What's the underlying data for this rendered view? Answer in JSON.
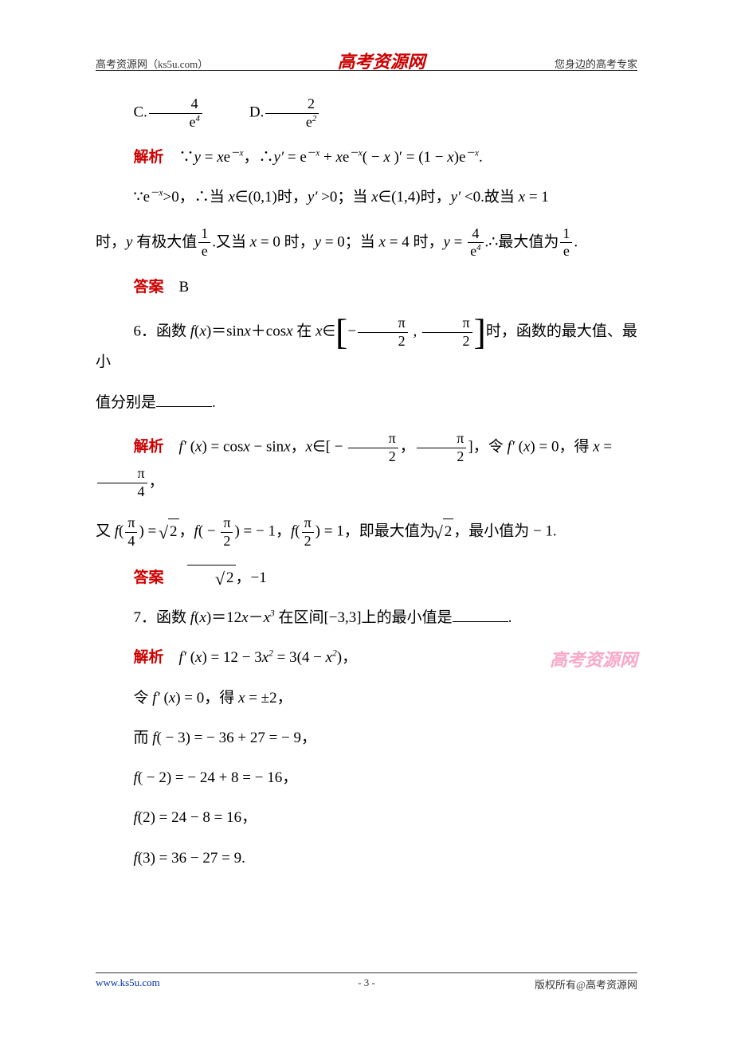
{
  "header": {
    "left": "高考资源网（ks5u.com）",
    "center": "高考资源网",
    "right": "您身边的高考专家"
  },
  "watermark": "高考资源网",
  "blocks": {
    "cd_line": {
      "C": "C.",
      "c_num": "4",
      "c_den": "e",
      "c_exp": "4",
      "D": "D.",
      "d_num": "2",
      "d_den": "e",
      "d_exp": "2",
      "gap": "　　　"
    },
    "s1": {
      "label": "解析",
      "t1": "∵",
      "eq1_l": "y",
      "eq1_r": " = ",
      "eq1_b": "x",
      "eq1_c": "e",
      "exp1": "－x",
      "t2": "，∴",
      "eq2_l": "y′",
      "eq2_r": " = e",
      "exp2": "－x",
      "plus": " + ",
      "eq2_c": "x",
      "eq2_d": "e",
      "exp3": "－x",
      "paren": "( − ",
      "eq2_e": "x",
      "close": " )′ = (1 − ",
      "eq2_f": "x",
      "tail": ")e",
      "exp4": "－x",
      "dot": "."
    },
    "s2": {
      "pre": "∵",
      "eq": "e",
      "exp": "－x",
      "gt": ">0，∴当 ",
      "x1": "x",
      "in1": "∈(0,1)时，",
      "yp1": "y′",
      "g0": " >0；当 ",
      "x2": "x",
      "in2": "∈(1,4)时，",
      "yp2": "y′",
      "l0": " <0.故当 ",
      "x3": "x",
      "eqv": " = 1"
    },
    "s3": {
      "pre": "时，",
      "y": "y",
      "txt": " 有极大值",
      "f1n": "1",
      "f1d": "e",
      "mid": ".又当 ",
      "x1": "x",
      "ev1": " = 0 时，",
      "y2": "y",
      "ev2": " = 0；当 ",
      "x2": "x",
      "ev3": " = 4 时，",
      "y3": "y",
      "eq": " = ",
      "f2n": "4",
      "f2d": "e",
      "f2e": "4",
      "tail": ".∴最大值为",
      "f3n": "1",
      "f3d": "e",
      "dot": "."
    },
    "ans_b": {
      "label": "答案",
      "val": "B"
    },
    "q6": {
      "num": "6．函数 ",
      "fx": "f",
      "of": "(",
      "x": "x",
      "cl": ")＝sin",
      "x2": "x",
      "plus": "＋cos",
      "x3": "x",
      "at": " 在 ",
      "x4": "x",
      "in": "∈",
      "lbr": "[",
      "neg": "−",
      "n1": "π",
      "d1": "2",
      "comma": " , ",
      "n2": "π",
      "d2": "2",
      "rbr": "]",
      "tail": "时，函数的最大值、最小"
    },
    "q6b": {
      "pre": "值分别是",
      "post": "."
    },
    "s6a": {
      "label": "解析",
      "fp": "f′",
      "of": " (",
      "x": "x",
      "cl": ") = cos",
      "x1": "x",
      "minus": " − sin",
      "x2": "x",
      "comma": "，",
      "x3": "x",
      "in": "∈[ − ",
      "n1": "π",
      "d1": "2",
      "c2": "，",
      "n2": "π",
      "d2": "2",
      "rb": "]，令 ",
      "fp2": "f′",
      "of2": " (",
      "x4": "x",
      "cl2": ") = 0，得 ",
      "x5": "x",
      "eq": " = ",
      "n3": "π",
      "d3": "4",
      "dot": "，"
    },
    "s6b": {
      "pre": "又 ",
      "f": "f",
      "lp": "(",
      "n1": "π",
      "d1": "4",
      "rp": ") = ",
      "sq": "2",
      "c": "，",
      "f2": "f",
      "lp2": "( − ",
      "n2": "π",
      "d2": "2",
      "rp2": ") = − 1，",
      "f3": "f",
      "lp3": "(",
      "n3": "π",
      "d3": "2",
      "rp3": ") = 1，即最大值为",
      "sq2": "2",
      "tail": "，最小值为 − 1."
    },
    "ans6": {
      "label": "答案",
      "sq": "2",
      "tail": "，−1"
    },
    "q7": {
      "txt1": "7．函数 ",
      "f": "f",
      "of": "(",
      "x": "x",
      "cl": ")＝12",
      "x2": "x",
      "minus": "－",
      "x3": "x",
      "exp": "3",
      "tail": " 在区间[−3,3]上的最小值是",
      "dot": "."
    },
    "s7a": {
      "label": "解析",
      "fp": "f′",
      "of": " (",
      "x": "x",
      "cl": ") = 12 − 3",
      "x2": "x",
      "exp": "2",
      "eq": " = 3(4 − ",
      "x3": "x",
      "exp2": "2",
      "tail": ")，"
    },
    "s7b": {
      "pre": "令 ",
      "fp": "f′",
      "of": " (",
      "x": "x",
      "cl": ") = 0，得 ",
      "x2": "x",
      "eq": " = ±2，"
    },
    "s7c": {
      "pre": "而 ",
      "f": "f",
      "of": "( − 3) = − 36 + 27 = − 9，"
    },
    "s7d": {
      "f": "f",
      "of": "( − 2) = − 24 + 8 = − 16，"
    },
    "s7e": {
      "f": "f",
      "of": "(2) = 24 − 8 = 16，"
    },
    "s7f": {
      "f": "f",
      "of": "(3) = 36 − 27 = 9."
    }
  },
  "footer": {
    "left": "www.ks5u.com",
    "center": "- 3 -",
    "right": "版权所有@高考资源网"
  }
}
